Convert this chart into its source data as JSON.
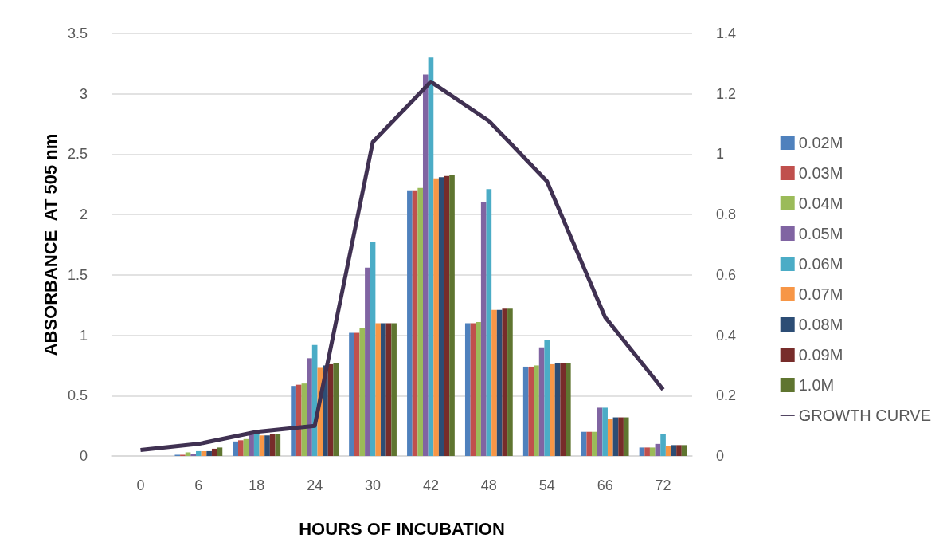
{
  "chart_data": {
    "type": "bar",
    "xlabel": "HOURS OF INCUBATION",
    "ylabel": "ABSORBANCE  AT 505 nm",
    "categories": [
      "0",
      "6",
      "18",
      "24",
      "30",
      "42",
      "48",
      "54",
      "66",
      "72"
    ],
    "series": [
      {
        "name": "0.02M",
        "color": "#4f81bd",
        "values": [
          0,
          0.01,
          0.12,
          0.58,
          1.02,
          2.2,
          1.1,
          0.74,
          0.2,
          0.07
        ]
      },
      {
        "name": "0.03M",
        "color": "#c0504d",
        "values": [
          0,
          0.01,
          0.13,
          0.59,
          1.02,
          2.2,
          1.1,
          0.74,
          0.2,
          0.07
        ]
      },
      {
        "name": "0.04M",
        "color": "#9bbb59",
        "values": [
          0,
          0.03,
          0.14,
          0.6,
          1.06,
          2.22,
          1.11,
          0.75,
          0.2,
          0.07
        ]
      },
      {
        "name": "0.05M",
        "color": "#8064a2",
        "values": [
          0,
          0.02,
          0.19,
          0.81,
          1.56,
          3.16,
          2.1,
          0.9,
          0.4,
          0.1
        ]
      },
      {
        "name": "0.06M",
        "color": "#4bacc6",
        "values": [
          0,
          0.04,
          0.21,
          0.92,
          1.77,
          3.3,
          2.21,
          0.96,
          0.4,
          0.18
        ]
      },
      {
        "name": "0.07M",
        "color": "#f79646",
        "values": [
          0,
          0.04,
          0.17,
          0.73,
          1.1,
          2.3,
          1.21,
          0.76,
          0.31,
          0.08
        ]
      },
      {
        "name": "0.08M",
        "color": "#2c4d75",
        "values": [
          0,
          0.04,
          0.17,
          0.75,
          1.1,
          2.31,
          1.21,
          0.77,
          0.32,
          0.09
        ]
      },
      {
        "name": "0.09M",
        "color": "#772c2a",
        "values": [
          0,
          0.06,
          0.18,
          0.76,
          1.1,
          2.32,
          1.22,
          0.77,
          0.32,
          0.09
        ]
      },
      {
        "name": "1.0M",
        "color": "#5f7530",
        "values": [
          0,
          0.07,
          0.18,
          0.77,
          1.1,
          2.33,
          1.22,
          0.77,
          0.32,
          0.09
        ]
      },
      {
        "name": "GROWTH CURVE",
        "type": "line",
        "axis": "y2",
        "color": "#403152",
        "values": [
          0.02,
          0.04,
          0.08,
          0.1,
          1.04,
          1.24,
          1.11,
          0.91,
          0.46,
          0.22
        ]
      }
    ],
    "ylim": [
      0,
      3.5
    ],
    "yticks": [
      0,
      0.5,
      1,
      1.5,
      2,
      2.5,
      3,
      3.5
    ],
    "y2lim": [
      0,
      1.4
    ],
    "y2ticks": [
      0,
      0.2,
      0.4,
      0.6,
      0.8,
      1,
      1.2,
      1.4
    ],
    "grid": "y",
    "legend": "right",
    "marker": "none"
  }
}
